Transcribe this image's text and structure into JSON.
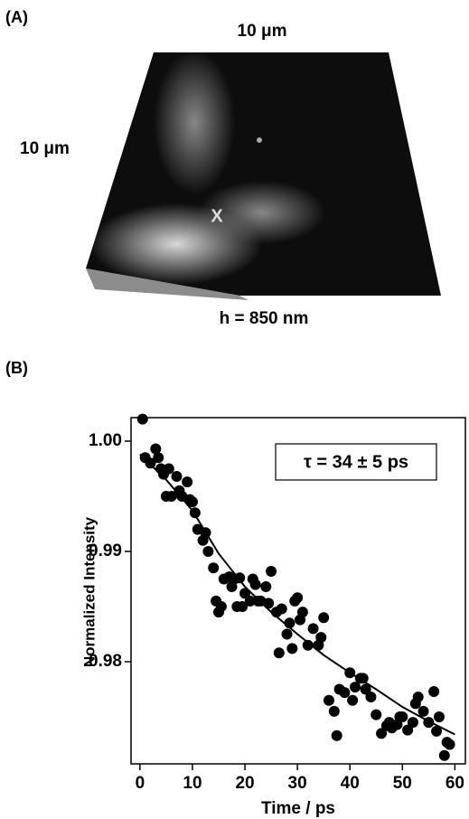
{
  "panel_a": {
    "label": "(A)",
    "top_label": "10 μm",
    "side_label": "10 μm",
    "marker": "X",
    "height_label": "h = 850 nm"
  },
  "chart_data": {
    "type": "scatter",
    "panel_label": "(B)",
    "x_label": "Time / ps",
    "y_label": "Normalized Intensity",
    "annotation": "τ = 34 ± 5 ps",
    "xlim": [
      -1.7,
      62
    ],
    "ylim": [
      0.97074,
      1.00213
    ],
    "xticks": [
      0,
      10,
      20,
      30,
      40,
      50,
      60
    ],
    "yticks": [
      0.98,
      0.99,
      {
        "value": 1,
        "label": "1.00"
      }
    ],
    "series": [
      {
        "type": "scatter",
        "color": "#000000",
        "x": [
          0.5,
          1,
          2,
          3,
          3.5,
          4,
          4.5,
          5,
          5.5,
          6,
          7,
          7.5,
          8,
          9,
          9.5,
          10,
          10.5,
          11,
          12,
          12.5,
          13,
          14,
          14.5,
          15,
          15.5,
          16,
          17,
          17.5,
          18,
          18.5,
          19,
          19.5,
          20,
          21,
          21.5,
          22,
          22.5,
          23,
          24,
          24.5,
          25,
          26,
          26.5,
          27,
          28,
          28.5,
          29,
          29.5,
          30,
          30.5,
          31,
          32,
          33,
          34,
          34.5,
          35,
          36,
          37,
          37.5,
          38,
          39,
          40,
          40.5,
          41,
          42,
          42.5,
          43,
          44,
          45,
          46,
          47,
          47.5,
          48,
          49,
          49.5,
          50,
          51,
          52,
          52.5,
          53,
          54,
          55,
          56,
          56.5,
          57,
          58,
          58.5,
          59
        ],
        "values": [
          1.002,
          0.9985,
          0.998,
          0.9993,
          0.9985,
          0.9975,
          0.997,
          0.995,
          0.9975,
          0.995,
          0.9968,
          0.9955,
          0.995,
          0.9963,
          0.9947,
          0.9945,
          0.9935,
          0.992,
          0.991,
          0.9917,
          0.99,
          0.9885,
          0.9855,
          0.9845,
          0.985,
          0.9875,
          0.9877,
          0.9868,
          0.9875,
          0.985,
          0.9876,
          0.985,
          0.9862,
          0.9855,
          0.9875,
          0.987,
          0.9855,
          0.9855,
          0.9868,
          0.9853,
          0.9882,
          0.9845,
          0.9808,
          0.9848,
          0.9825,
          0.9835,
          0.9812,
          0.9855,
          0.9858,
          0.9838,
          0.9845,
          0.9815,
          0.983,
          0.9815,
          0.9822,
          0.984,
          0.9765,
          0.9755,
          0.9733,
          0.9775,
          0.9772,
          0.979,
          0.9765,
          0.9777,
          0.9785,
          0.9785,
          0.9775,
          0.9768,
          0.9752,
          0.9735,
          0.9742,
          0.9745,
          0.974,
          0.9743,
          0.975,
          0.975,
          0.9738,
          0.9745,
          0.9762,
          0.9768,
          0.9755,
          0.9745,
          0.9773,
          0.9737,
          0.975,
          0.9715,
          0.9727,
          0.9725
        ]
      },
      {
        "type": "line",
        "color": "#000000",
        "x": [
          0,
          5,
          10,
          15,
          20,
          25,
          30,
          35,
          40,
          45,
          50,
          55,
          60
        ],
        "values": [
          0.9988,
          0.9965,
          0.9937,
          0.9898,
          0.9868,
          0.9845,
          0.9825,
          0.9806,
          0.979,
          0.9775,
          0.9759,
          0.9746,
          0.9734
        ]
      }
    ]
  }
}
